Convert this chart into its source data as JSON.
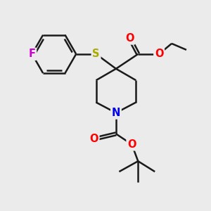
{
  "bg_color": "#ebebeb",
  "bond_color": "#1a1a1a",
  "bond_lw": 1.8,
  "atom_colors": {
    "F": "#cc00cc",
    "S": "#aaaa00",
    "O": "#ff0000",
    "N": "#0000ee",
    "C": "#1a1a1a"
  },
  "font_size": 10.5,
  "figsize": [
    3.0,
    3.0
  ],
  "dpi": 100,
  "xlim": [
    0,
    10
  ],
  "ylim": [
    0,
    10
  ]
}
